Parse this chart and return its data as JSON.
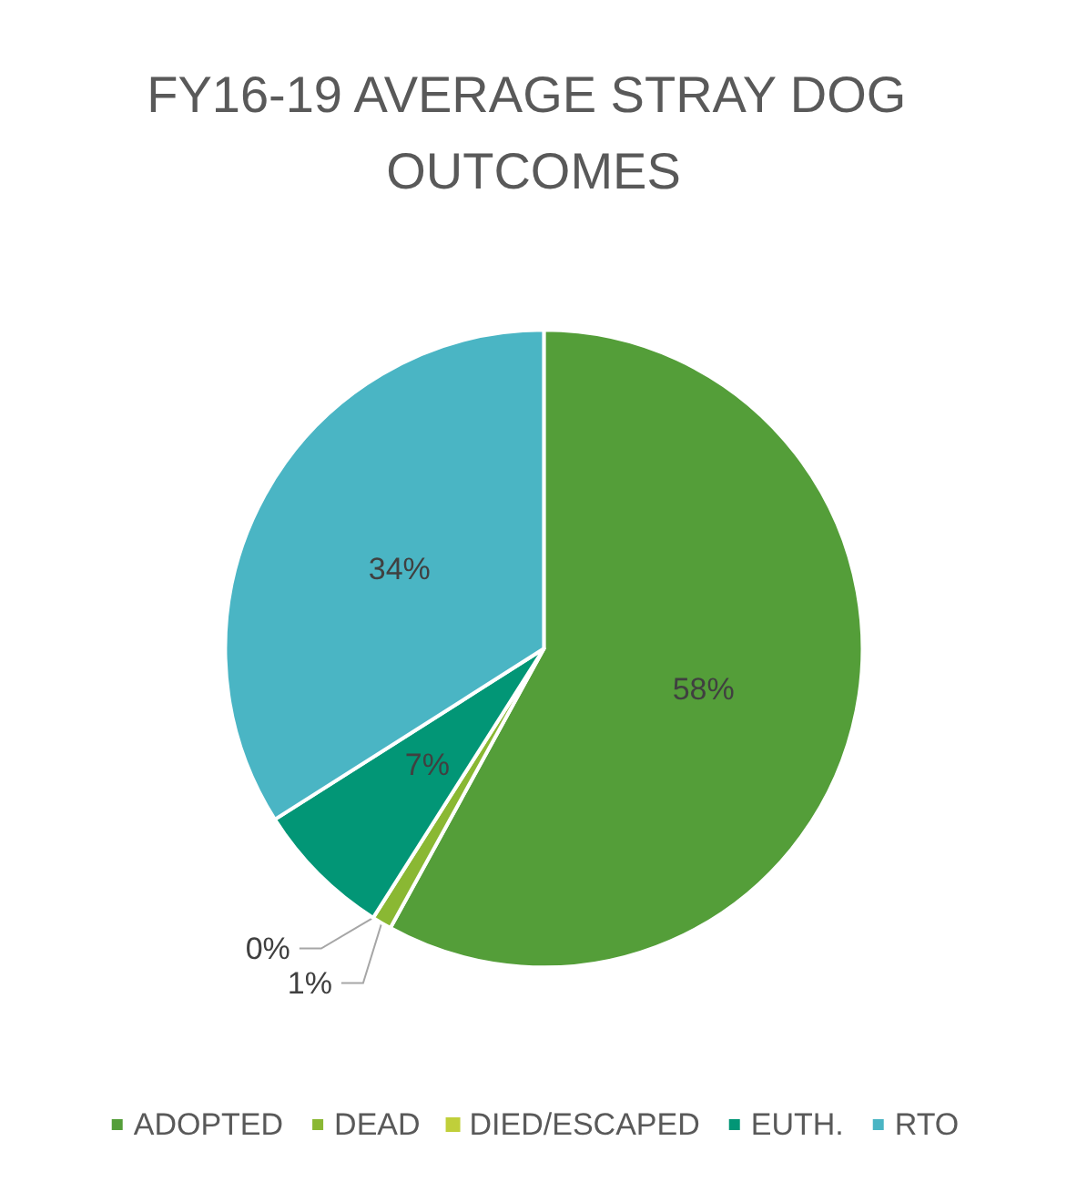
{
  "chart_data": {
    "type": "pie",
    "title": "FY16-19 AVERAGE STRAY DOG OUTCOMES",
    "categories": [
      "ADOPTED",
      "DEAD",
      "DIED/ESCAPED",
      "EUTH.",
      "RTO"
    ],
    "values": [
      58,
      1,
      0,
      7,
      34
    ],
    "colors": [
      "#549e39",
      "#8ab833",
      "#c0cf3a",
      "#029676",
      "#4ab5c4"
    ],
    "value_labels": [
      "58%",
      "1%",
      "0%",
      "7%",
      "34%"
    ],
    "legend": "bottom"
  }
}
